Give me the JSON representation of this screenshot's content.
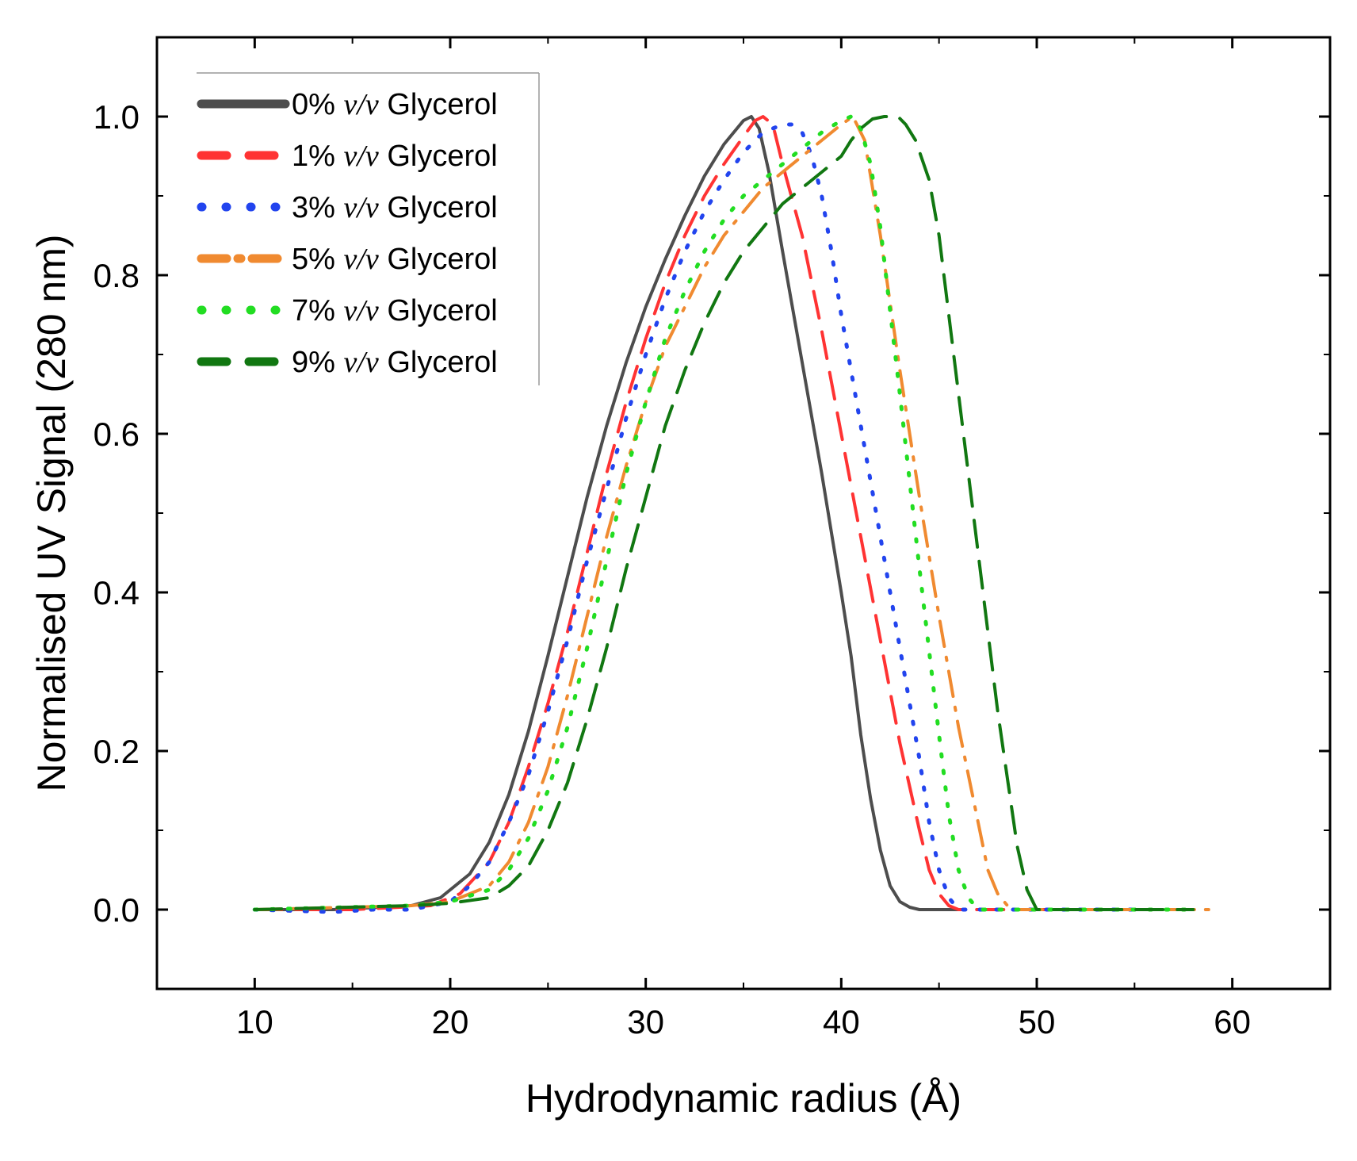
{
  "chart_data": {
    "type": "line",
    "title": "",
    "xlabel": "Hydrodynamic radius (Å)",
    "ylabel": "Normalised UV Signal (280 nm)",
    "xlim": [
      5,
      65
    ],
    "ylim": [
      -0.1,
      1.1
    ],
    "xticks": [
      10,
      20,
      30,
      40,
      50,
      60
    ],
    "yticks": [
      0.0,
      0.2,
      0.4,
      0.6,
      0.8,
      1.0
    ],
    "xtick_labels": [
      "10",
      "20",
      "30",
      "40",
      "50",
      "60"
    ],
    "ytick_labels": [
      "0.0",
      "0.2",
      "0.4",
      "0.6",
      "0.8",
      "1.0"
    ],
    "grid": false,
    "legend_position": "top-left",
    "series": [
      {
        "name": "0% v/v Glycerol",
        "pct": "0%",
        "unit": "v/v",
        "suffix": "Glycerol",
        "color": "#4d4d4d",
        "style": "solid",
        "x": [
          10,
          14,
          18,
          19.5,
          21,
          22,
          23,
          24,
          25,
          26,
          27,
          28,
          29,
          30,
          31,
          32,
          33,
          34,
          35,
          35.4,
          35.8,
          36.3,
          37,
          38,
          39,
          40,
          40.5,
          41,
          41.5,
          42,
          42.5,
          43,
          43.5,
          44,
          45,
          46
        ],
        "y": [
          0,
          0,
          0.005,
          0.015,
          0.045,
          0.085,
          0.145,
          0.225,
          0.32,
          0.42,
          0.52,
          0.61,
          0.69,
          0.76,
          0.82,
          0.875,
          0.925,
          0.965,
          0.995,
          1.0,
          0.985,
          0.93,
          0.83,
          0.69,
          0.55,
          0.4,
          0.32,
          0.22,
          0.14,
          0.075,
          0.03,
          0.01,
          0.003,
          0.0,
          0.0,
          0.0
        ]
      },
      {
        "name": "1% v/v Glycerol",
        "pct": "1%",
        "unit": "v/v",
        "suffix": "Glycerol",
        "color": "#ff3333",
        "style": "dashed",
        "x": [
          10,
          15,
          19,
          20.5,
          22,
          23,
          24,
          25,
          26,
          27,
          28,
          29,
          30,
          31,
          32,
          33,
          34,
          35,
          35.6,
          36,
          36.5,
          37,
          38,
          39,
          40,
          41,
          42,
          43,
          44,
          44.5,
          45,
          45.5,
          46,
          48,
          52,
          55
        ],
        "y": [
          0,
          0,
          0.005,
          0.02,
          0.06,
          0.11,
          0.18,
          0.26,
          0.35,
          0.45,
          0.55,
          0.64,
          0.72,
          0.79,
          0.85,
          0.9,
          0.94,
          0.975,
          0.995,
          1.0,
          0.99,
          0.94,
          0.85,
          0.73,
          0.6,
          0.47,
          0.34,
          0.21,
          0.1,
          0.05,
          0.02,
          0.005,
          0.0,
          0.0,
          0.0,
          0.0
        ]
      },
      {
        "name": "3% v/v Glycerol",
        "pct": "3%",
        "unit": "v/v",
        "suffix": "Glycerol",
        "color": "#2244ee",
        "style": "dotted",
        "x": [
          10,
          14,
          16,
          18,
          20,
          21,
          22,
          23,
          24,
          25,
          26,
          27,
          28,
          29,
          30,
          31,
          32,
          33,
          34,
          35,
          36,
          37,
          37.5,
          38,
          38.5,
          39,
          39.5,
          40,
          41,
          42,
          43,
          44,
          44.5,
          45,
          45.5,
          46,
          50,
          55
        ],
        "y": [
          0,
          -0.003,
          0,
          0,
          0.01,
          0.03,
          0.06,
          0.11,
          0.17,
          0.25,
          0.34,
          0.44,
          0.53,
          0.62,
          0.7,
          0.77,
          0.83,
          0.88,
          0.92,
          0.955,
          0.98,
          0.99,
          0.99,
          0.98,
          0.95,
          0.9,
          0.83,
          0.75,
          0.61,
          0.47,
          0.33,
          0.19,
          0.11,
          0.05,
          0.015,
          0.0,
          0.0,
          0.0
        ]
      },
      {
        "name": "5% v/v Glycerol",
        "pct": "5%",
        "unit": "v/v",
        "suffix": "Glycerol",
        "color": "#f08a30",
        "style": "dashdot",
        "x": [
          10,
          18,
          20,
          22,
          23,
          24,
          25,
          26,
          27,
          28,
          29,
          30,
          31,
          32,
          33,
          34,
          35,
          36,
          37,
          38,
          39,
          40,
          40.6,
          41.2,
          42,
          43,
          44,
          45,
          46,
          47,
          47.5,
          48,
          48.5,
          49,
          52,
          56,
          59
        ],
        "y": [
          0,
          0.005,
          0.01,
          0.03,
          0.06,
          0.11,
          0.18,
          0.27,
          0.37,
          0.47,
          0.56,
          0.64,
          0.71,
          0.76,
          0.81,
          0.85,
          0.88,
          0.91,
          0.93,
          0.95,
          0.97,
          0.99,
          1.0,
          0.97,
          0.85,
          0.68,
          0.52,
          0.37,
          0.23,
          0.11,
          0.05,
          0.02,
          0.005,
          0.0,
          0.0,
          0.0,
          0.0
        ]
      },
      {
        "name": "7% v/v Glycerol",
        "pct": "7%",
        "unit": "v/v",
        "suffix": "Glycerol",
        "color": "#22dd22",
        "style": "dotted",
        "x": [
          10,
          18,
          20,
          22,
          23,
          24,
          25,
          26,
          27,
          28,
          29,
          30,
          31,
          32,
          33,
          34,
          35,
          36,
          37,
          38,
          39,
          40,
          40.5,
          41,
          41.5,
          42,
          43,
          44,
          45,
          45.5,
          46,
          46.5,
          47,
          50,
          55,
          58
        ],
        "y": [
          0,
          0.005,
          0.01,
          0.025,
          0.05,
          0.09,
          0.15,
          0.23,
          0.33,
          0.44,
          0.55,
          0.64,
          0.72,
          0.78,
          0.83,
          0.87,
          0.9,
          0.92,
          0.94,
          0.96,
          0.98,
          0.995,
          1.0,
          0.985,
          0.94,
          0.86,
          0.65,
          0.43,
          0.22,
          0.12,
          0.05,
          0.015,
          0.0,
          0.0,
          0.0,
          0.0
        ]
      },
      {
        "name": "9% v/v Glycerol",
        "pct": "9%",
        "unit": "v/v",
        "suffix": "Glycerol",
        "color": "#117711",
        "style": "dashed",
        "x": [
          10,
          18,
          20,
          22,
          23,
          24,
          25,
          26,
          27,
          28,
          29,
          30,
          31,
          32,
          33,
          34,
          35,
          36,
          37,
          38,
          39,
          40,
          40.5,
          41,
          41.6,
          42.2,
          42.9,
          43.3,
          43.8,
          44.5,
          45,
          46,
          47,
          48,
          49,
          49.5,
          50,
          54,
          58
        ],
        "y": [
          0,
          0.005,
          0.008,
          0.015,
          0.03,
          0.055,
          0.1,
          0.16,
          0.24,
          0.33,
          0.43,
          0.52,
          0.61,
          0.68,
          0.74,
          0.79,
          0.83,
          0.86,
          0.89,
          0.91,
          0.93,
          0.95,
          0.97,
          0.985,
          0.997,
          1.0,
          1.0,
          0.99,
          0.97,
          0.92,
          0.85,
          0.65,
          0.45,
          0.25,
          0.08,
          0.025,
          0.0,
          0.0,
          0.0
        ]
      }
    ]
  }
}
